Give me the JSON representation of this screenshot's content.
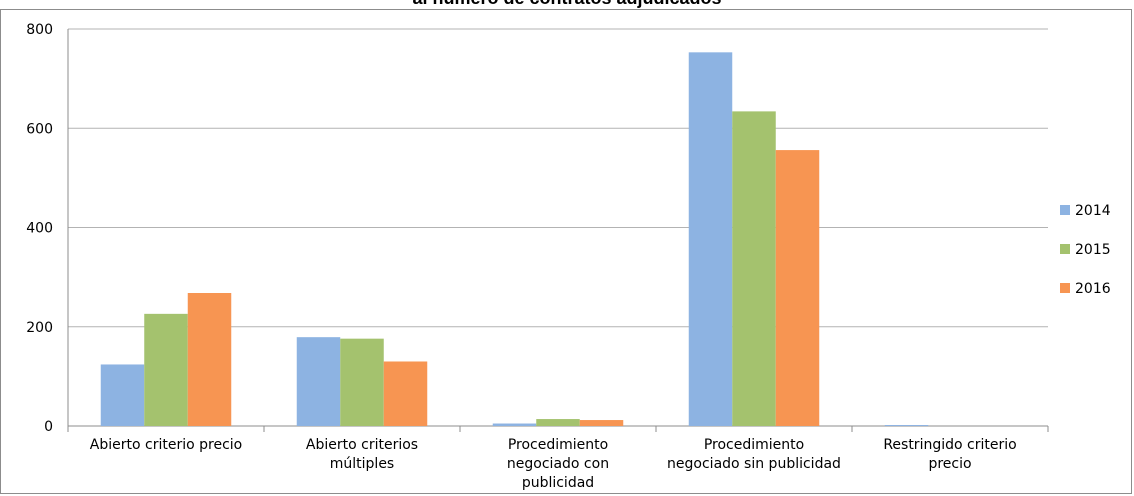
{
  "chart_data": {
    "type": "bar",
    "title": "al número de contratos adjudicados",
    "xlabel": "",
    "ylabel": "",
    "categories": [
      [
        "Abierto criterio precio"
      ],
      [
        "Abierto criterios",
        "múltiples"
      ],
      [
        "Procedimiento",
        "negociado con",
        "publicidad"
      ],
      [
        "Procedimiento",
        "negociado sin publicidad"
      ],
      [
        "Restringido criterio",
        "precio"
      ]
    ],
    "series": [
      {
        "name": "2014",
        "color": "#8db3e2",
        "values": [
          124,
          179,
          5,
          753,
          2
        ]
      },
      {
        "name": "2015",
        "color": "#a4c26e",
        "values": [
          226,
          176,
          14,
          634,
          0
        ]
      },
      {
        "name": "2016",
        "color": "#f79552",
        "values": [
          268,
          130,
          12,
          556,
          0
        ]
      }
    ],
    "ylim": [
      0,
      800
    ],
    "yticks": [
      0,
      200,
      400,
      600,
      800
    ],
    "grid": true,
    "legend_position": "right"
  }
}
